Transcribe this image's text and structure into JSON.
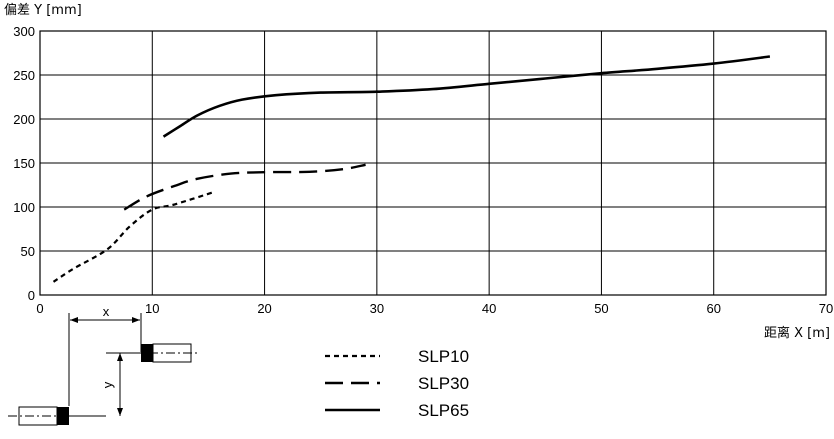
{
  "chart_data": {
    "type": "line",
    "title": "",
    "ylabel": "偏差 Y [mm]",
    "xlabel": "距离 X [m]",
    "xlim": [
      0,
      70
    ],
    "ylim": [
      0,
      300
    ],
    "xticks": [
      0,
      10,
      20,
      30,
      40,
      50,
      60,
      70
    ],
    "yticks": [
      0,
      50,
      100,
      150,
      200,
      250,
      300
    ],
    "grid": true,
    "legend_position": "bottom-center",
    "series": [
      {
        "name": "SLP10",
        "style": "dotted",
        "points": [
          [
            1.2,
            15
          ],
          [
            3,
            30
          ],
          [
            6,
            52
          ],
          [
            8,
            78
          ],
          [
            10,
            97
          ],
          [
            12,
            103
          ],
          [
            15.5,
            117
          ]
        ]
      },
      {
        "name": "SLP30",
        "style": "dashed",
        "points": [
          [
            7.5,
            97
          ],
          [
            9.5,
            112
          ],
          [
            12,
            124
          ],
          [
            14,
            132
          ],
          [
            17,
            138
          ],
          [
            20,
            139.5
          ],
          [
            24,
            140
          ],
          [
            27,
            143
          ],
          [
            29,
            148
          ]
        ]
      },
      {
        "name": "SLP65",
        "style": "solid",
        "points": [
          [
            11,
            180
          ],
          [
            12.5,
            192
          ],
          [
            14,
            204
          ],
          [
            16,
            215
          ],
          [
            18,
            222
          ],
          [
            21,
            227
          ],
          [
            25,
            230
          ],
          [
            30,
            231
          ],
          [
            35,
            234
          ],
          [
            40,
            240
          ],
          [
            45,
            246
          ],
          [
            50,
            252
          ],
          [
            55,
            257
          ],
          [
            60,
            263
          ],
          [
            65,
            271
          ]
        ]
      }
    ],
    "diagram": {
      "x_label": "x",
      "y_label": "y"
    }
  }
}
